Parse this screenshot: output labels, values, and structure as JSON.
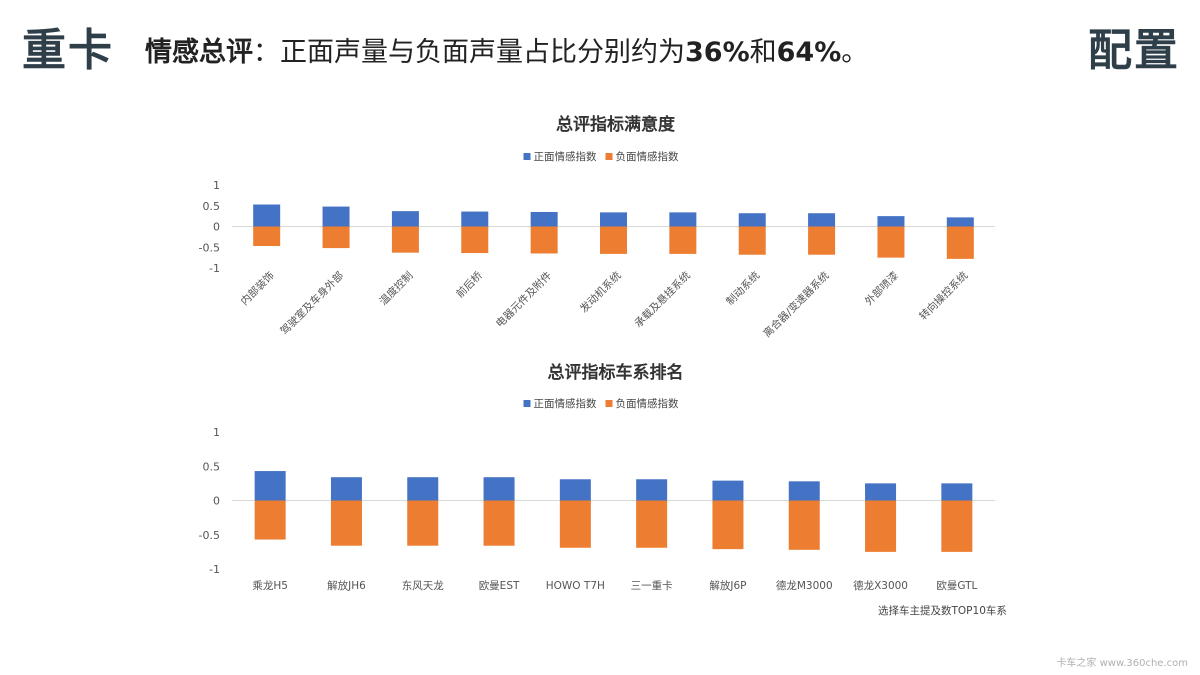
{
  "header": {
    "brand": "重卡",
    "headline_label": "情感总评",
    "headline_sep": "：",
    "headline_text": "正面声量与负面声量占比分别约为",
    "pos_pct": "36%",
    "and": "和",
    "neg_pct": "64%",
    "end": "。",
    "section": "配置"
  },
  "footnote": "选择车主提及数TOP10车系",
  "watermark": "卡车之家 www.360che.com",
  "colors": {
    "positive": "#4472c4",
    "negative": "#ed7d31",
    "zero_line": "#d9d9d9"
  },
  "chart_data": [
    {
      "type": "bar",
      "title": "总评指标满意度",
      "legend": [
        "正面情感指数",
        "负面情感指数"
      ],
      "legend_position": "top",
      "ylim": [
        -1,
        1
      ],
      "yticks": [
        "1",
        "0.5",
        "0",
        "-0.5",
        "-1"
      ],
      "grid": false,
      "categories": [
        "内部装饰",
        "驾驶室及车身外部",
        "温度控制",
        "前后桥",
        "电器元件及附件",
        "发动机系统",
        "承载及悬挂系统",
        "制动系统",
        "离合器/变速器系统",
        "外部喷漆",
        "转向操控系统"
      ],
      "series": [
        {
          "name": "正面情感指数",
          "values": [
            0.53,
            0.48,
            0.37,
            0.36,
            0.35,
            0.34,
            0.34,
            0.32,
            0.32,
            0.25,
            0.22
          ]
        },
        {
          "name": "负面情感指数",
          "values": [
            -0.47,
            -0.52,
            -0.63,
            -0.64,
            -0.65,
            -0.66,
            -0.66,
            -0.68,
            -0.68,
            -0.75,
            -0.78
          ]
        }
      ]
    },
    {
      "type": "bar",
      "title": "总评指标车系排名",
      "legend": [
        "正面情感指数",
        "负面情感指数"
      ],
      "legend_position": "top",
      "ylim": [
        -1,
        1
      ],
      "yticks": [
        "1",
        "0.5",
        "0",
        "-0.5",
        "-1"
      ],
      "grid": false,
      "categories": [
        "乘龙H5",
        "解放JH6",
        "东风天龙",
        "欧曼EST",
        "HOWO T7H",
        "三一重卡",
        "解放J6P",
        "德龙M3000",
        "德龙X3000",
        "欧曼GTL"
      ],
      "series": [
        {
          "name": "正面情感指数",
          "values": [
            0.43,
            0.34,
            0.34,
            0.34,
            0.31,
            0.31,
            0.29,
            0.28,
            0.25,
            0.25
          ]
        },
        {
          "name": "负面情感指数",
          "values": [
            -0.57,
            -0.66,
            -0.66,
            -0.66,
            -0.69,
            -0.69,
            -0.71,
            -0.72,
            -0.75,
            -0.75
          ]
        }
      ]
    }
  ]
}
